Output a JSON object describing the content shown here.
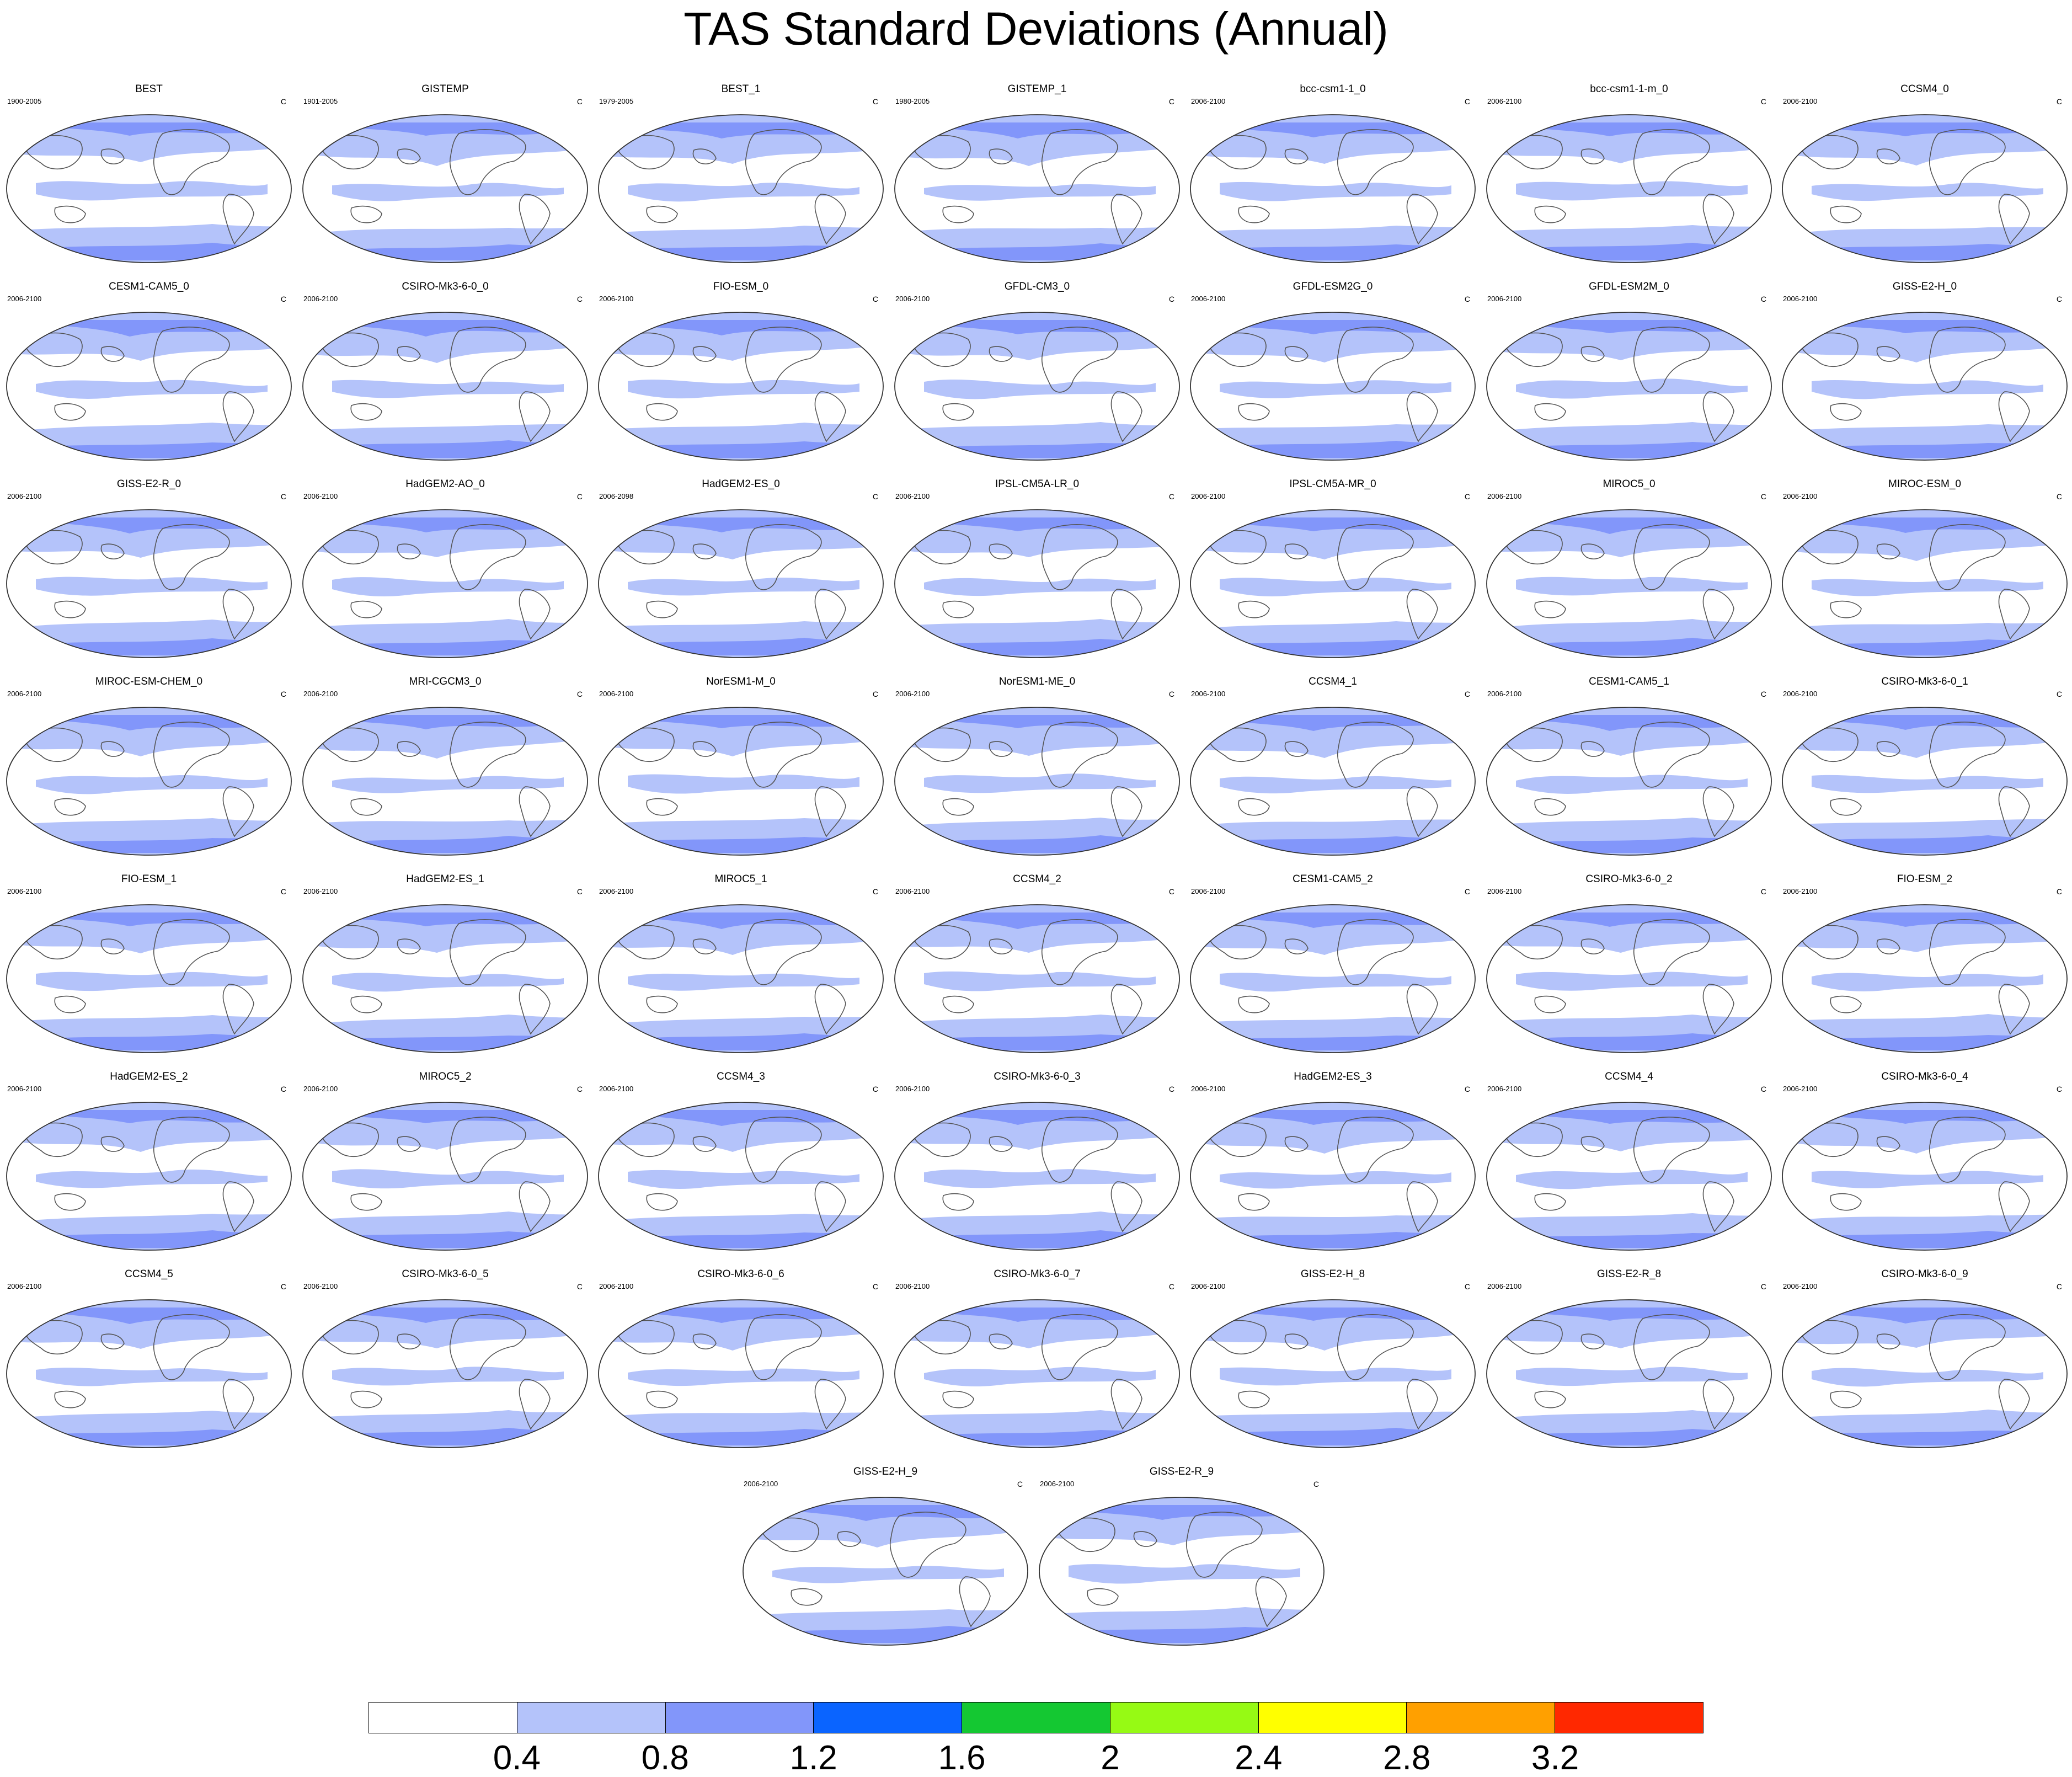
{
  "title": "TAS Standard Deviations (Annual)",
  "units": "C",
  "colors": {
    "land_outline": "#555555",
    "map_border": "#333333",
    "background": "#ffffff"
  },
  "panels": [
    {
      "name": "BEST",
      "period": "1900-2005"
    },
    {
      "name": "GISTEMP",
      "period": "1901-2005"
    },
    {
      "name": "BEST_1",
      "period": "1979-2005"
    },
    {
      "name": "GISTEMP_1",
      "period": "1980-2005"
    },
    {
      "name": "bcc-csm1-1_0",
      "period": "2006-2100"
    },
    {
      "name": "bcc-csm1-1-m_0",
      "period": "2006-2100"
    },
    {
      "name": "CCSM4_0",
      "period": "2006-2100"
    },
    {
      "name": "CESM1-CAM5_0",
      "period": "2006-2100"
    },
    {
      "name": "CSIRO-Mk3-6-0_0",
      "period": "2006-2100"
    },
    {
      "name": "FIO-ESM_0",
      "period": "2006-2100"
    },
    {
      "name": "GFDL-CM3_0",
      "period": "2006-2100"
    },
    {
      "name": "GFDL-ESM2G_0",
      "period": "2006-2100"
    },
    {
      "name": "GFDL-ESM2M_0",
      "period": "2006-2100"
    },
    {
      "name": "GISS-E2-H_0",
      "period": "2006-2100"
    },
    {
      "name": "GISS-E2-R_0",
      "period": "2006-2100"
    },
    {
      "name": "HadGEM2-AO_0",
      "period": "2006-2100"
    },
    {
      "name": "HadGEM2-ES_0",
      "period": "2006-2098"
    },
    {
      "name": "IPSL-CM5A-LR_0",
      "period": "2006-2100"
    },
    {
      "name": "IPSL-CM5A-MR_0",
      "period": "2006-2100"
    },
    {
      "name": "MIROC5_0",
      "period": "2006-2100"
    },
    {
      "name": "MIROC-ESM_0",
      "period": "2006-2100"
    },
    {
      "name": "MIROC-ESM-CHEM_0",
      "period": "2006-2100"
    },
    {
      "name": "MRI-CGCM3_0",
      "period": "2006-2100"
    },
    {
      "name": "NorESM1-M_0",
      "period": "2006-2100"
    },
    {
      "name": "NorESM1-ME_0",
      "period": "2006-2100"
    },
    {
      "name": "CCSM4_1",
      "period": "2006-2100"
    },
    {
      "name": "CESM1-CAM5_1",
      "period": "2006-2100"
    },
    {
      "name": "CSIRO-Mk3-6-0_1",
      "period": "2006-2100"
    },
    {
      "name": "FIO-ESM_1",
      "period": "2006-2100"
    },
    {
      "name": "HadGEM2-ES_1",
      "period": "2006-2100"
    },
    {
      "name": "MIROC5_1",
      "period": "2006-2100"
    },
    {
      "name": "CCSM4_2",
      "period": "2006-2100"
    },
    {
      "name": "CESM1-CAM5_2",
      "period": "2006-2100"
    },
    {
      "name": "CSIRO-Mk3-6-0_2",
      "period": "2006-2100"
    },
    {
      "name": "FIO-ESM_2",
      "period": "2006-2100"
    },
    {
      "name": "HadGEM2-ES_2",
      "period": "2006-2100"
    },
    {
      "name": "MIROC5_2",
      "period": "2006-2100"
    },
    {
      "name": "CCSM4_3",
      "period": "2006-2100"
    },
    {
      "name": "CSIRO-Mk3-6-0_3",
      "period": "2006-2100"
    },
    {
      "name": "HadGEM2-ES_3",
      "period": "2006-2100"
    },
    {
      "name": "CCSM4_4",
      "period": "2006-2100"
    },
    {
      "name": "CSIRO-Mk3-6-0_4",
      "period": "2006-2100"
    },
    {
      "name": "CCSM4_5",
      "period": "2006-2100"
    },
    {
      "name": "CSIRO-Mk3-6-0_5",
      "period": "2006-2100"
    },
    {
      "name": "CSIRO-Mk3-6-0_6",
      "period": "2006-2100"
    },
    {
      "name": "CSIRO-Mk3-6-0_7",
      "period": "2006-2100"
    },
    {
      "name": "GISS-E2-H_8",
      "period": "2006-2100"
    },
    {
      "name": "GISS-E2-R_8",
      "period": "2006-2100"
    },
    {
      "name": "CSIRO-Mk3-6-0_9",
      "period": "2006-2100"
    },
    {
      "name": "GISS-E2-H_9",
      "period": "2006-2100"
    },
    {
      "name": "GISS-E2-R_9",
      "period": "2006-2100"
    }
  ],
  "colorbar": {
    "colors": [
      "#ffffff",
      "#b4c3fa",
      "#8296fa",
      "#0a64ff",
      "#14c832",
      "#96fa14",
      "#ffff00",
      "#ffa000",
      "#ff2800"
    ],
    "tick_labels": [
      "0.4",
      "0.8",
      "1.2",
      "1.6",
      "2",
      "2.4",
      "2.8",
      "3.2"
    ]
  }
}
